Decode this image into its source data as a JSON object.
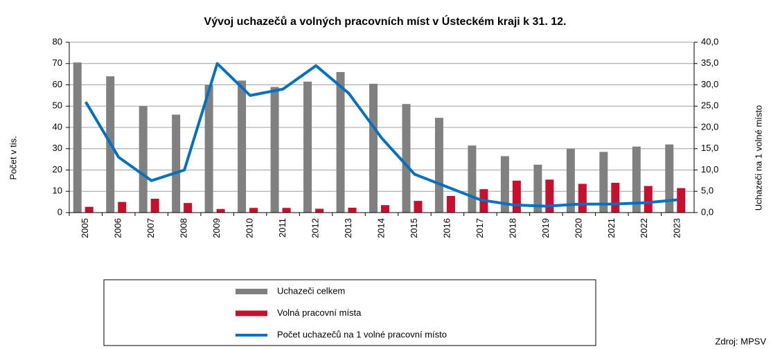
{
  "chart_data": {
    "type": "bar",
    "title": "Vývoj uchazečů a volných pracovních míst v Ústeckém kraji k 31. 12.",
    "y_label": "Počet v tis.",
    "y2_label": "Uchazeči na 1 volné místo",
    "source": "Zdroj: MPSV",
    "categories": [
      "2005",
      "2006",
      "2007",
      "2008",
      "2009",
      "2010",
      "2011",
      "2012",
      "2013",
      "2014",
      "2015",
      "2016",
      "2017",
      "2018",
      "2019",
      "2020",
      "2021",
      "2022",
      "2023"
    ],
    "series": [
      {
        "name": "Uchazeči celkem",
        "type": "bar",
        "color": "#808080",
        "values": [
          70.5,
          64,
          50,
          46,
          60,
          62,
          59,
          61.5,
          66,
          60.5,
          51,
          44.5,
          31.5,
          26.5,
          22.5,
          30,
          28.5,
          31,
          32
        ]
      },
      {
        "name": "Volná pracovní místa",
        "type": "bar",
        "color": "#c8102e",
        "values": [
          2.7,
          5,
          6.5,
          4.5,
          1.7,
          2.2,
          2.2,
          1.8,
          2.3,
          3.5,
          5.5,
          7.8,
          11,
          15,
          15.5,
          13.5,
          14,
          12.5,
          11.5
        ]
      },
      {
        "name": "Počet uchazečů na 1 volné pracovní místo",
        "type": "line",
        "axis": "y2",
        "color": "#0070c0",
        "values": [
          26,
          13,
          7.5,
          10,
          35,
          27.5,
          29,
          34.5,
          28,
          17.5,
          9,
          6,
          3,
          1.8,
          1.5,
          2,
          2,
          2.3,
          3
        ]
      }
    ],
    "ylim": [
      0,
      80
    ],
    "yticks": [
      0,
      10,
      20,
      30,
      40,
      50,
      60,
      70,
      80
    ],
    "y2lim": [
      0,
      40
    ],
    "y2ticks": [
      {
        "value": 0,
        "label": "0,0"
      },
      {
        "value": 5,
        "label": "5,0"
      },
      {
        "value": 10,
        "label": "10,0"
      },
      {
        "value": 15,
        "label": "15,0"
      },
      {
        "value": 20,
        "label": "20,0"
      },
      {
        "value": 25,
        "label": "25,0"
      },
      {
        "value": 30,
        "label": "30,0"
      },
      {
        "value": 35,
        "label": "35,0"
      },
      {
        "value": 40,
        "label": "40,0"
      }
    ],
    "grid": true
  }
}
